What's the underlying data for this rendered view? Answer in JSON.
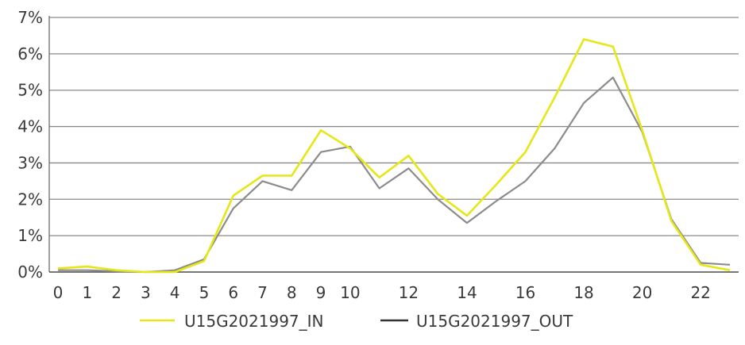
{
  "chart_data": {
    "type": "line",
    "title": "",
    "xlabel": "",
    "ylabel": "",
    "x": [
      0,
      1,
      2,
      3,
      4,
      5,
      6,
      7,
      8,
      9,
      10,
      11,
      12,
      13,
      14,
      15,
      16,
      17,
      18,
      19,
      20,
      21,
      22,
      23
    ],
    "x_tick_labels": [
      "0",
      "1",
      "2",
      "3",
      "4",
      "5",
      "6",
      "7",
      "8",
      "9",
      "10",
      "12",
      "14",
      "16",
      "18",
      "20",
      "22"
    ],
    "x_tick_values": [
      0,
      1,
      2,
      3,
      4,
      5,
      6,
      7,
      8,
      9,
      10,
      12,
      14,
      16,
      18,
      20,
      22
    ],
    "y_tick_labels": [
      "0%",
      "1%",
      "2%",
      "3%",
      "4%",
      "5%",
      "6%",
      "7%"
    ],
    "y_tick_values": [
      0,
      1,
      2,
      3,
      4,
      5,
      6,
      7
    ],
    "ylim": [
      0,
      7
    ],
    "xlim": [
      -0.3,
      23.3
    ],
    "grid": "horizontal",
    "legend_position": "bottom",
    "series": [
      {
        "name": "U15G2021997_IN",
        "color": "#e6e619",
        "values": [
          0.1,
          0.15,
          0.05,
          0.0,
          0.0,
          0.3,
          2.1,
          2.65,
          2.65,
          3.9,
          3.4,
          2.6,
          3.2,
          2.15,
          1.55,
          2.4,
          3.3,
          4.8,
          6.4,
          6.2,
          3.9,
          1.4,
          0.2,
          0.05
        ]
      },
      {
        "name": "U15G2021997_OUT",
        "color": "#8c8c8c",
        "values": [
          0.05,
          0.05,
          0.02,
          0.0,
          0.05,
          0.35,
          1.75,
          2.5,
          2.25,
          3.3,
          3.45,
          2.3,
          2.85,
          2.0,
          1.35,
          1.95,
          2.5,
          3.4,
          4.65,
          5.35,
          3.85,
          1.45,
          0.25,
          0.2
        ]
      }
    ]
  }
}
